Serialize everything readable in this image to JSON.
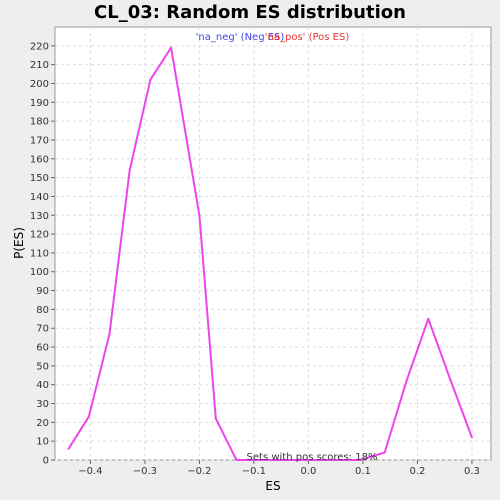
{
  "chart_data": {
    "type": "line",
    "title": "CL_03: Random ES distribution",
    "xlabel": "ES",
    "ylabel": "P(ES)",
    "xlim": [
      -0.465,
      0.335
    ],
    "ylim": [
      0,
      230
    ],
    "xticks": [
      -0.4,
      -0.3,
      -0.2,
      -0.1,
      0.0,
      0.1,
      0.2,
      0.3
    ],
    "xtick_labels": [
      "−0.4",
      "−0.3",
      "−0.2",
      "−0.1",
      "0.0",
      "0.1",
      "0.2",
      "0.3"
    ],
    "yticks": [
      0,
      10,
      20,
      30,
      40,
      50,
      60,
      70,
      80,
      90,
      100,
      110,
      120,
      130,
      140,
      150,
      160,
      170,
      180,
      190,
      200,
      210,
      220
    ],
    "grid": true,
    "legend": {
      "placement": "top-center",
      "entries": [
        {
          "label": "'na_neg' (Neg ES)",
          "color": "#4444ee"
        },
        {
          "label": "'na_pos' (Pos ES)",
          "color": "#ee3333"
        }
      ]
    },
    "annotation": "Sets with pos scores: 18%",
    "series": [
      {
        "color": "#ee44ee",
        "x": [
          -0.44,
          -0.403,
          -0.365,
          -0.328,
          -0.29,
          -0.252,
          -0.2,
          -0.17,
          -0.132,
          -0.095,
          -0.057,
          -0.02,
          0.02,
          0.057,
          0.095,
          0.14,
          0.18,
          0.22,
          0.26,
          0.3
        ],
        "y": [
          6,
          23,
          67,
          154,
          202,
          219,
          130,
          22,
          0,
          0,
          0,
          0,
          0,
          0,
          0,
          4,
          42,
          75,
          43,
          12
        ]
      }
    ]
  }
}
